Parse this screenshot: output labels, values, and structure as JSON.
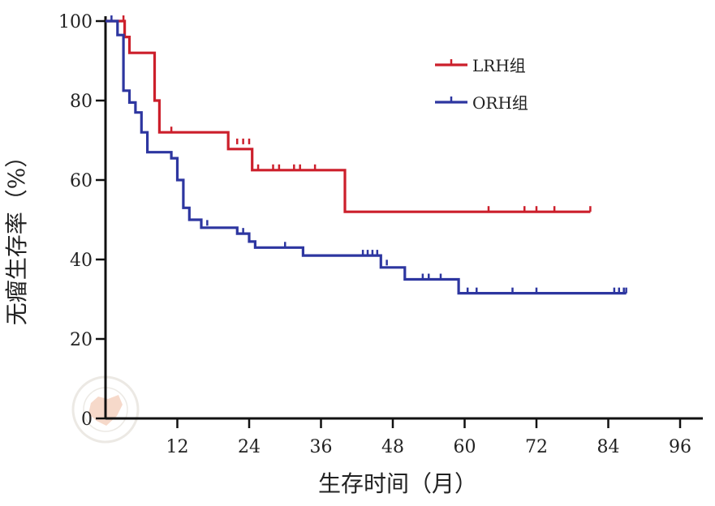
{
  "chart_data": {
    "type": "line",
    "subtype": "kaplan-meier",
    "xlabel": "生存时间（月）",
    "ylabel": "无瘤生存率（%）",
    "xlim": [
      0,
      96
    ],
    "ylim": [
      0,
      100
    ],
    "xticks": [
      12,
      24,
      36,
      48,
      60,
      72,
      84,
      96
    ],
    "xtick_labels": [
      "12",
      "24",
      "36",
      "48",
      "60",
      "72",
      "84",
      "96"
    ],
    "yticks": [
      0,
      20,
      40,
      60,
      80,
      100
    ],
    "ytick_labels": [
      "0",
      "20",
      "40",
      "60",
      "80",
      "100"
    ],
    "grid": false,
    "legend_position": "top-right",
    "series": [
      {
        "name": "LRH组",
        "color": "#cc1f2b",
        "steps": [
          [
            0,
            100
          ],
          [
            3.2,
            100
          ],
          [
            3.2,
            96
          ],
          [
            4,
            96
          ],
          [
            4,
            92
          ],
          [
            8.2,
            92
          ],
          [
            8.2,
            80
          ],
          [
            9,
            80
          ],
          [
            9,
            72
          ],
          [
            20.5,
            72
          ],
          [
            20.5,
            67.8
          ],
          [
            24.5,
            67.8
          ],
          [
            24.5,
            62.5
          ],
          [
            40,
            62.5
          ],
          [
            40,
            52
          ],
          [
            81,
            52
          ]
        ],
        "censored": [
          [
            3,
            100
          ],
          [
            11,
            72
          ],
          [
            22,
            69
          ],
          [
            23,
            69
          ],
          [
            24,
            69
          ],
          [
            25.5,
            62.5
          ],
          [
            28,
            62.5
          ],
          [
            29,
            62.5
          ],
          [
            31.5,
            62.5
          ],
          [
            32.5,
            62.5
          ],
          [
            35,
            62.5
          ],
          [
            64,
            52
          ],
          [
            70,
            52
          ],
          [
            72,
            52
          ],
          [
            75,
            52
          ],
          [
            81,
            52
          ]
        ]
      },
      {
        "name": "ORH组",
        "color": "#2d36a0",
        "steps": [
          [
            0,
            100
          ],
          [
            2,
            100
          ],
          [
            2,
            96.5
          ],
          [
            3,
            96.5
          ],
          [
            3,
            82.5
          ],
          [
            4,
            82.5
          ],
          [
            4,
            79.5
          ],
          [
            5,
            79.5
          ],
          [
            5,
            77
          ],
          [
            6,
            77
          ],
          [
            6,
            72
          ],
          [
            7,
            72
          ],
          [
            7,
            67
          ],
          [
            11,
            67
          ],
          [
            11,
            65.5
          ],
          [
            12,
            65.5
          ],
          [
            12,
            60
          ],
          [
            13,
            60
          ],
          [
            13,
            53
          ],
          [
            14,
            53
          ],
          [
            14,
            50
          ],
          [
            16,
            50
          ],
          [
            16,
            48
          ],
          [
            22,
            48
          ],
          [
            22,
            46.5
          ],
          [
            24,
            46.5
          ],
          [
            24,
            44.5
          ],
          [
            25,
            44.5
          ],
          [
            25,
            43
          ],
          [
            33,
            43
          ],
          [
            33,
            41
          ],
          [
            46,
            41
          ],
          [
            46,
            38
          ],
          [
            50,
            38
          ],
          [
            50,
            35
          ],
          [
            59,
            35
          ],
          [
            59,
            31.5
          ],
          [
            87,
            31.5
          ]
        ],
        "censored": [
          [
            1,
            100
          ],
          [
            17,
            48.5
          ],
          [
            23,
            46.5
          ],
          [
            30,
            43
          ],
          [
            43,
            41
          ],
          [
            43.8,
            41
          ],
          [
            44.6,
            41
          ],
          [
            45.4,
            41
          ],
          [
            47,
            38.5
          ],
          [
            53,
            35
          ],
          [
            54,
            35
          ],
          [
            56,
            35
          ],
          [
            60.5,
            31.5
          ],
          [
            62,
            31.5
          ],
          [
            68,
            31.5
          ],
          [
            72,
            31.5
          ],
          [
            85,
            31.5
          ],
          [
            85.8,
            31.5
          ],
          [
            86.6,
            31.5
          ],
          [
            87,
            31.5
          ]
        ]
      }
    ]
  }
}
